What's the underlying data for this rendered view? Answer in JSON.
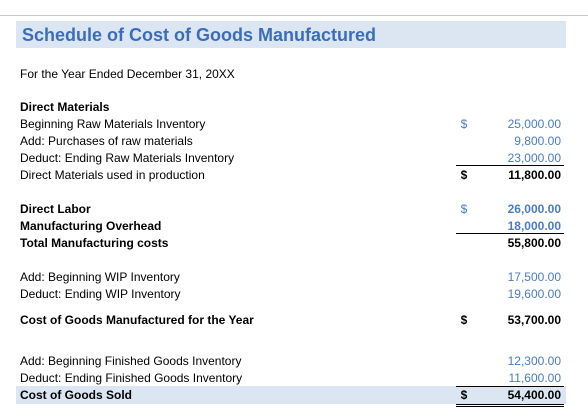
{
  "title": "Schedule of Cost of Goods Manufactured",
  "period": "For the Year Ended December 31, 20XX",
  "currency_symbol": "$",
  "colors": {
    "title": "#3a6ebd",
    "band": "#dce6f2",
    "input_values": "#4a7bc8"
  },
  "rows": {
    "dm_heading": {
      "label": "Direct Materials"
    },
    "beg_raw": {
      "label": "Beginning Raw Materials Inventory",
      "amount": "25,000.00"
    },
    "purchases": {
      "label": "Add: Purchases of raw materials",
      "amount": "9,800.00"
    },
    "end_raw": {
      "label": "Deduct: Ending Raw Materials Inventory",
      "amount": "23,000.00"
    },
    "dm_used": {
      "label": "Direct Materials used in production",
      "amount": "11,800.00"
    },
    "direct_labor": {
      "label": "Direct Labor",
      "amount": "26,000.00"
    },
    "overhead": {
      "label": "Manufacturing Overhead",
      "amount": "18,000.00"
    },
    "total_mfg": {
      "label": "Total Manufacturing costs",
      "amount": "55,800.00"
    },
    "beg_wip": {
      "label": "Add: Beginning WIP Inventory",
      "amount": "17,500.00"
    },
    "end_wip": {
      "label": "Deduct: Ending WIP Inventory",
      "amount": "19,600.00"
    },
    "cogm": {
      "label": "Cost of Goods Manufactured for the Year",
      "amount": "53,700.00"
    },
    "beg_fg": {
      "label": "Add: Beginning Finished Goods Inventory",
      "amount": "12,300.00"
    },
    "end_fg": {
      "label": "Deduct: Ending Finished Goods Inventory",
      "amount": "11,600.00"
    },
    "cogs": {
      "label": "Cost of Goods Sold",
      "amount": "54,400.00"
    }
  }
}
